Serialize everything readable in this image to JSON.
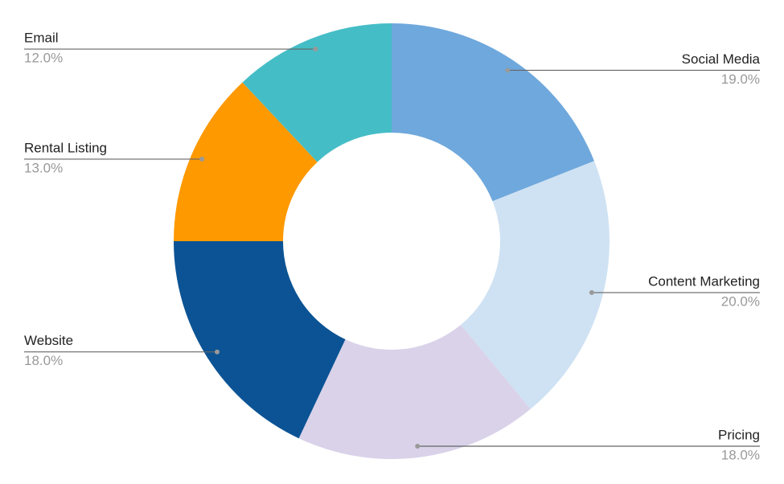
{
  "chart_data": {
    "type": "donut",
    "categories": [
      "Social Media",
      "Content Marketing",
      "Pricing",
      "Website",
      "Rental Listing",
      "Email"
    ],
    "values": [
      19,
      20,
      18,
      18,
      13,
      12
    ],
    "value_labels": [
      "19.0%",
      "20.0%",
      "18.0%",
      "18.0%",
      "13.0%",
      "12.0%"
    ],
    "colors": [
      "#6fa8dc",
      "#cfe2f3",
      "#d9d2e9",
      "#0b5394",
      "#ff9900",
      "#45bdc6"
    ]
  }
}
